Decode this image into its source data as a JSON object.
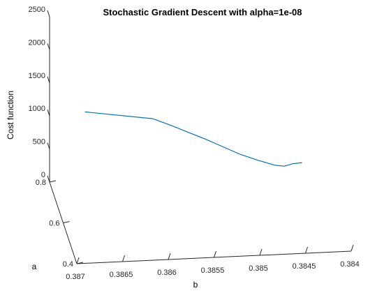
{
  "chart_data": {
    "type": "line",
    "projection": "3d",
    "title": "Stochastic Gradient Descent with alpha=1e-08",
    "xlabel": "b",
    "ylabel": "a",
    "zlabel": "Cost function",
    "xlim": [
      0.384,
      0.387
    ],
    "ylim": [
      0.4,
      0.8
    ],
    "zlim": [
      0,
      2500
    ],
    "x_ticks": [
      "0.387",
      "0.3865",
      "0.386",
      "0.3855",
      "0.385",
      "0.3845",
      "0.384"
    ],
    "y_ticks": [
      "0.4",
      "0.6",
      "0.8"
    ],
    "z_ticks": [
      "0",
      "500",
      "1000",
      "1500",
      "2000",
      "2500"
    ],
    "grid": false,
    "line_color": "#0072BD",
    "series": [
      {
        "b": [
          0.3868,
          0.386,
          0.3858,
          0.3856,
          0.3854,
          0.3852,
          0.385,
          0.3848,
          0.3846,
          0.3845,
          0.3844,
          0.3843
        ],
        "a": [
          0.55,
          0.63,
          0.64,
          0.65,
          0.66,
          0.67,
          0.68,
          0.7,
          0.71,
          0.71,
          0.72,
          0.72
        ],
        "cost": [
          1820,
          1420,
          1280,
          1130,
          980,
          820,
          660,
          500,
          380,
          360,
          360,
          370
        ]
      }
    ]
  }
}
